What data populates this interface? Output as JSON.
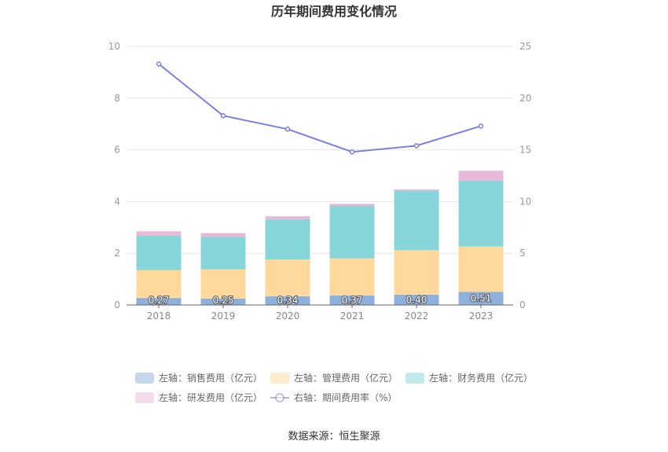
{
  "chart_data": {
    "type": "bar",
    "title": "历年期间费用变化情况",
    "categories": [
      "2018",
      "2019",
      "2020",
      "2021",
      "2022",
      "2023"
    ],
    "series": [
      {
        "name": "左轴：销售费用（亿元）",
        "kind": "bar",
        "axis": "left",
        "color": "#8eb0dc",
        "values": [
          0.27,
          0.25,
          0.34,
          0.37,
          0.4,
          0.51
        ],
        "labels": [
          "0.27",
          "0.25",
          "0.34",
          "0.37",
          "0.40",
          "0.51"
        ]
      },
      {
        "name": "左轴：管理费用（亿元）",
        "kind": "bar",
        "axis": "left",
        "color": "#ffd99b",
        "values": [
          1.08,
          1.13,
          1.42,
          1.43,
          1.72,
          1.75
        ]
      },
      {
        "name": "左轴：财务费用（亿元）",
        "kind": "bar",
        "axis": "left",
        "color": "#86d5d8",
        "values": [
          1.33,
          1.25,
          1.55,
          2.03,
          2.3,
          2.55
        ]
      },
      {
        "name": "左轴：研发费用（亿元）",
        "kind": "bar",
        "axis": "left",
        "color": "#e7b8d8",
        "values": [
          0.17,
          0.15,
          0.12,
          0.08,
          0.05,
          0.38
        ]
      },
      {
        "name": "右轴：期间费用率（%）",
        "kind": "line",
        "axis": "right",
        "color": "#7b7fe0",
        "values": [
          23.3,
          18.3,
          17.0,
          14.8,
          15.4,
          17.3
        ]
      }
    ],
    "y_left": {
      "min": 0,
      "max": 10,
      "ticks": [
        0,
        2,
        4,
        6,
        8,
        10
      ]
    },
    "y_right": {
      "min": 0,
      "max": 25,
      "ticks": [
        0,
        5,
        10,
        15,
        20,
        25
      ]
    },
    "grid": true,
    "legend_position": "bottom",
    "source": "数据来源：恒生聚源"
  }
}
